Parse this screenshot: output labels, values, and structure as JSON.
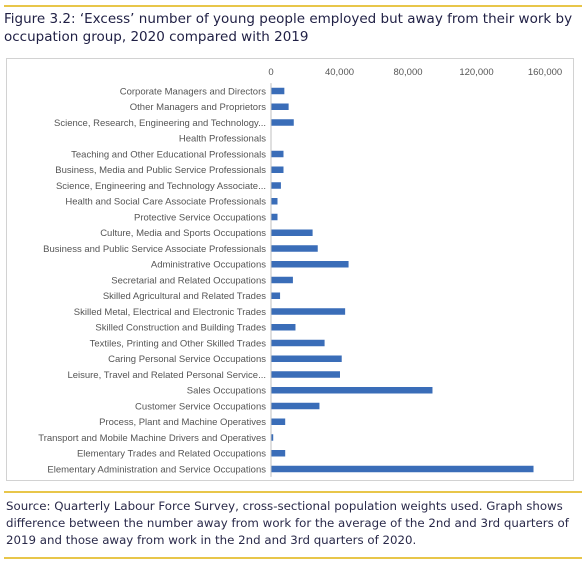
{
  "figure": {
    "title": "Figure 3.2: ‘Excess’ number of young people employed but away from their work by occupation group, 2020 compared with 2019",
    "source": "Source: Quarterly Labour Force Survey, cross-sectional population weights used. Graph shows difference between the number away from work for the average of the 2nd and 3rd quarters of 2019 and those away from work in the 2nd and 3rd quarters of 2020."
  },
  "chart_data": {
    "type": "bar",
    "orientation": "horizontal",
    "title": "",
    "xlabel": "",
    "ylabel": "",
    "xlim": [
      0,
      160000
    ],
    "x_ticks": [
      0,
      40000,
      80000,
      120000,
      160000
    ],
    "x_tick_labels": [
      "0",
      "40,000",
      "80,000",
      "120,000",
      "160,000"
    ],
    "x_axis_position": "top",
    "grid": false,
    "legend": "none",
    "bar_color": "#3a6db8",
    "categories": [
      "Corporate Managers and Directors",
      "Other Managers and Proprietors",
      "Science, Research, Engineering and Technology...",
      "Health Professionals",
      "Teaching and Other Educational Professionals",
      "Business, Media and Public Service Professionals",
      "Science, Engineering and Technology Associate...",
      "Health and Social Care Associate Professionals",
      "Protective Service Occupations",
      "Culture, Media and Sports Occupations",
      "Business and Public Service Associate Professionals",
      "Administrative Occupations",
      "Secretarial and Related Occupations",
      "Skilled Agricultural and Related Trades",
      "Skilled Metal, Electrical and Electronic Trades",
      "Skilled Construction and Building Trades",
      "Textiles, Printing and Other Skilled Trades",
      "Caring Personal Service Occupations",
      "Leisure, Travel and Related Personal Service...",
      "Sales Occupations",
      "Customer Service Occupations",
      "Process, Plant and Machine Operatives",
      "Transport and Mobile Machine Drivers and Operatives",
      "Elementary Trades and Related Occupations",
      "Elementary Administration and Service Occupations"
    ],
    "values": [
      7500,
      10000,
      13000,
      0,
      7000,
      7000,
      5500,
      3500,
      3500,
      24000,
      27000,
      45000,
      12500,
      5000,
      43000,
      14000,
      31000,
      41000,
      40000,
      94000,
      28000,
      8000,
      1000,
      8000,
      153000
    ]
  }
}
